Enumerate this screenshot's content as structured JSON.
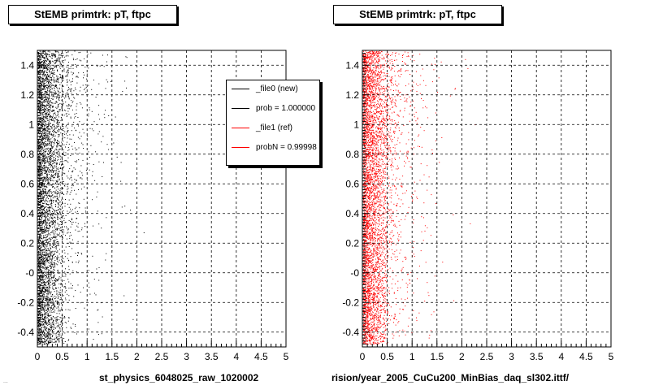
{
  "chart_data": [
    {
      "type": "scatter",
      "title": "StEMB primtrk: pT, ftpc",
      "xlabel": "st_physics_6048025_raw_1020002",
      "ylabel": "",
      "xlim": [
        0,
        5
      ],
      "ylim": [
        -0.5,
        1.5
      ],
      "xticks": [
        "0",
        "0.5",
        "1",
        "1.5",
        "2",
        "2.5",
        "3",
        "3.5",
        "4",
        "4.5",
        "5"
      ],
      "yticks": [
        "-0.4",
        "-0.2",
        "-0",
        "0.2",
        "0.4",
        "0.6",
        "0.8",
        "1",
        "1.2",
        "1.4"
      ],
      "grid": true,
      "series": [
        {
          "name": "_file0 (new)",
          "color": "#000000"
        }
      ],
      "legend": {
        "position": "top-right",
        "entries": [
          {
            "label": "_file0 (new)",
            "color": "#000000"
          },
          {
            "label": "prob = 1.000000",
            "color": "#000000"
          },
          {
            "label": "_file1 (ref)",
            "color": "#ff0000"
          },
          {
            "label": "probN = 0.99998",
            "color": "#ff0000"
          }
        ]
      }
    },
    {
      "type": "scatter",
      "title": "StEMB primtrk: pT, ftpc",
      "xlabel": "rision/year_2005_CuCu200_MinBias_daq_sl302.ittf/",
      "ylabel": "",
      "xlim": [
        0,
        5
      ],
      "ylim": [
        -0.5,
        1.5
      ],
      "xticks": [
        "0",
        "0.5",
        "1",
        "1.5",
        "2",
        "2.5",
        "3",
        "3.5",
        "4",
        "4.5",
        "5"
      ],
      "yticks": [
        "-0.4",
        "-0.2",
        "-0",
        "0.2",
        "0.4",
        "0.6",
        "0.8",
        "1",
        "1.2",
        "1.4"
      ],
      "grid": true,
      "series": [
        {
          "name": "_file1 (ref)",
          "color": "#ff0000"
        }
      ]
    }
  ],
  "stamp": "..."
}
